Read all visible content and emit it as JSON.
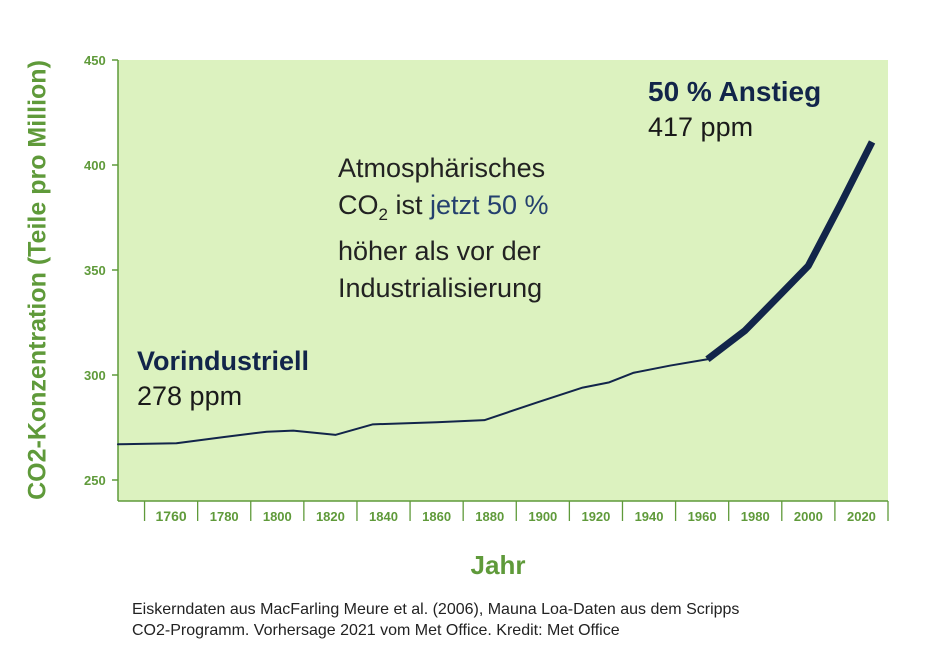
{
  "chart_data": {
    "type": "line",
    "ylabel": "CO2-Konzentration (Teile pro Million)",
    "xlabel": "Jahr",
    "xlim": [
      1740,
      2030
    ],
    "ylim": [
      240,
      450
    ],
    "x_ticks": [
      1760,
      1780,
      1800,
      1820,
      1840,
      1860,
      1880,
      1900,
      1920,
      1940,
      1960,
      1980,
      2000,
      2020
    ],
    "y_ticks": [
      250,
      300,
      350,
      400,
      450
    ],
    "series": [
      {
        "x": [
          1740,
          1762,
          1780,
          1796,
          1806,
          1822,
          1836,
          1860,
          1878,
          1898,
          1915,
          1925,
          1934,
          1948,
          1962
        ],
        "y": [
          267,
          267.5,
          270.5,
          273,
          273.5,
          271.5,
          276.5,
          277.5,
          278.5,
          287,
          294,
          296.5,
          301,
          304.5,
          307.5
        ]
      },
      {
        "x": [
          1962,
          1976,
          1990,
          2000,
          2012,
          2024
        ],
        "y": [
          307.5,
          321,
          339,
          352,
          381,
          411
        ]
      }
    ]
  },
  "annotations": {
    "pre_title": "Vorindustriell",
    "pre_value": "278 ppm",
    "rise_title": "50 % Anstieg",
    "rise_value": "417 ppm",
    "center_line1": "Atmosphärisches",
    "center_co": "CO",
    "center_sub": "2",
    "center_is": " ist ",
    "center_highlight": "jetzt 50 %",
    "center_line3": "höher als vor der",
    "center_line4": "Industrialisierung"
  },
  "caption": {
    "line1": "Eiskerndaten aus MacFarling Meure et al. (2006), Mauna Loa-Daten aus dem Scripps",
    "line2": "CO2-Programm. Vorhersage 2021 vom Met Office. Kredit: Met Office"
  },
  "colors": {
    "plot_background": "#dcf2bf",
    "axis_text": "#5f9a3a",
    "line": "#12254a"
  }
}
